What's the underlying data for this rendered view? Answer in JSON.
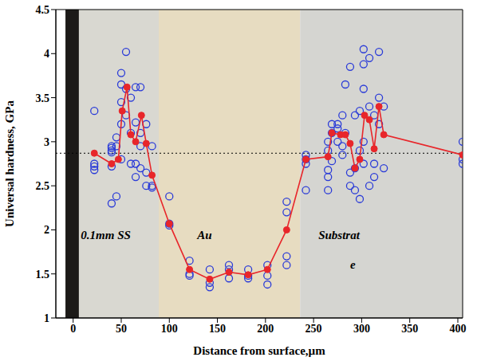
{
  "chart_data": {
    "type": "scatter",
    "x_label": "Distance from surface,µm",
    "y_label": "Universal hardness, GPa",
    "xlim": [
      -18,
      405
    ],
    "xticks": [
      0,
      50,
      100,
      150,
      200,
      250,
      300,
      350,
      400
    ],
    "ylim": [
      1,
      4.5
    ],
    "yticks": [
      1,
      1.5,
      2,
      2.5,
      3,
      3.5,
      4,
      4.5
    ],
    "grid": false,
    "regions": [
      {
        "x": [
          -8,
          6
        ],
        "color": "#1c1a18"
      },
      {
        "x": [
          6,
          89
        ],
        "color": "#d9d8d1"
      },
      {
        "x": [
          89,
          236
        ],
        "color": "#e7dcc1"
      },
      {
        "x": [
          236,
          405
        ],
        "color": "#d5d5d1"
      }
    ],
    "annotations": [
      {
        "text": "0.1mm SS",
        "x": 8,
        "y": 1.93
      },
      {
        "text": "Au",
        "x": 129,
        "y": 1.93
      },
      {
        "text": "Substrat",
        "x": 255,
        "y": 1.93
      },
      {
        "text": "e",
        "x": 288,
        "y": 1.59
      }
    ],
    "reference_line": {
      "y": 2.87,
      "line_style": "dotted",
      "color": "#000000"
    },
    "series": [
      {
        "type": "scatter",
        "marker": "open_circle",
        "color": "#2a3bd8",
        "x": [
          22,
          22,
          22,
          22,
          40,
          40,
          40,
          40,
          40,
          40,
          45,
          45,
          45,
          50,
          50,
          50,
          50,
          50,
          55,
          55,
          55,
          60,
          60,
          60,
          65,
          65,
          65,
          65,
          70,
          70,
          70,
          70,
          76,
          76,
          76,
          82,
          82,
          82,
          100,
          100,
          100,
          121,
          121,
          121,
          142,
          142,
          142,
          162,
          162,
          162,
          182,
          182,
          182,
          202,
          202,
          202,
          222,
          222,
          222,
          222,
          242,
          242,
          242,
          242,
          265,
          265,
          265,
          265,
          265,
          269,
          269,
          269,
          275,
          275,
          275,
          280,
          280,
          280,
          283,
          283,
          288,
          288,
          288,
          293,
          293,
          293,
          298,
          298,
          298,
          302,
          302,
          302,
          302,
          302,
          308,
          308,
          308,
          313,
          313,
          313,
          318,
          318,
          318,
          323,
          323,
          405,
          405,
          405
        ],
        "values": [
          3.35,
          2.72,
          2.75,
          2.68,
          2.3,
          2.72,
          2.9,
          2.95,
          2.93,
          2.88,
          2.38,
          2.95,
          3.05,
          3.65,
          3.78,
          3.45,
          3.2,
          2.8,
          4.02,
          3.6,
          3.3,
          3.5,
          3.1,
          2.75,
          3.62,
          3.22,
          2.6,
          2.75,
          3.62,
          3.1,
          2.95,
          2.7,
          3.2,
          2.65,
          2.5,
          2.95,
          2.5,
          2.48,
          2.38,
          2.07,
          2.05,
          1.65,
          1.5,
          1.48,
          1.55,
          1.4,
          1.35,
          1.6,
          1.55,
          1.45,
          1.55,
          1.48,
          1.45,
          1.6,
          1.48,
          1.38,
          2.32,
          2.2,
          1.7,
          1.6,
          2.85,
          2.8,
          2.75,
          2.45,
          2.45,
          2.68,
          2.9,
          3.0,
          2.6,
          3.1,
          3.2,
          2.78,
          3.2,
          3.15,
          3.0,
          3.3,
          2.95,
          2.85,
          3.65,
          3.1,
          3.85,
          2.65,
          2.5,
          3.3,
          2.45,
          2.7,
          3.35,
          2.35,
          2.9,
          4.05,
          3.88,
          3.6,
          3.0,
          2.75,
          3.95,
          3.4,
          2.5,
          3.3,
          2.75,
          2.6,
          4.02,
          3.5,
          3.2,
          3.4,
          2.7,
          3.0,
          2.8,
          2.75
        ]
      },
      {
        "type": "line",
        "marker": "circle",
        "color": "#e8262a",
        "x": [
          22,
          40,
          47,
          51,
          56,
          60,
          65,
          71,
          76,
          82,
          100,
          121,
          142,
          162,
          182,
          202,
          222,
          242,
          265,
          269,
          278,
          283,
          288,
          293,
          298,
          303,
          308,
          313,
          318,
          323,
          405
        ],
        "values": [
          2.87,
          2.75,
          2.8,
          3.35,
          3.62,
          3.08,
          3.0,
          3.3,
          2.98,
          2.62,
          2.07,
          1.55,
          1.44,
          1.52,
          1.49,
          1.55,
          2.0,
          2.8,
          2.83,
          3.1,
          3.08,
          3.08,
          2.98,
          2.7,
          2.8,
          3.3,
          3.25,
          2.92,
          3.4,
          3.08,
          2.85
        ]
      }
    ]
  }
}
